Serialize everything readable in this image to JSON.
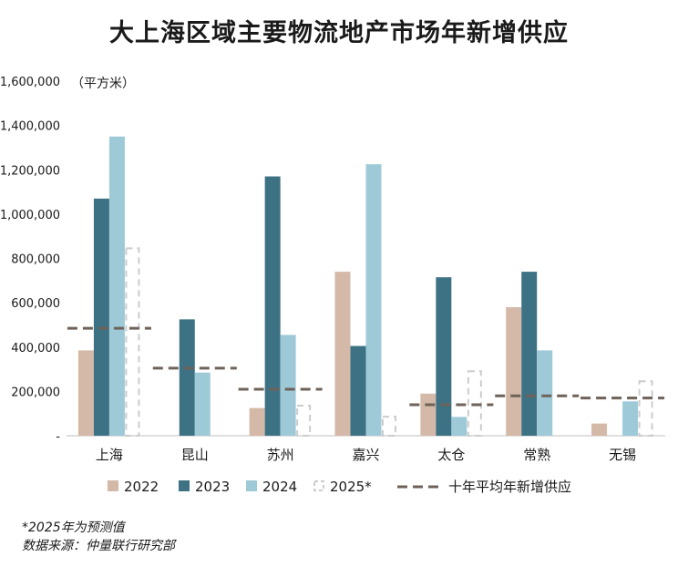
{
  "title": "大上海区域主要物流地产市场年新增供应",
  "unit_label": "（平方米）",
  "footnotes": [
    "*2025年为预测值",
    "数据来源：仲量联行研究部"
  ],
  "colors": {
    "2022": "#d4b9a8",
    "2023": "#3d7285",
    "2024": "#9ecad8",
    "2025*": "#cccccc",
    "avg": "#6e6259"
  },
  "chart_data": {
    "type": "bar",
    "title": "大上海区域主要物流地产市场年新增供应",
    "ylabel": "（平方米）",
    "ylim": [
      0,
      1600000
    ],
    "yticks": [
      0,
      200000,
      400000,
      600000,
      800000,
      1000000,
      1200000,
      1400000,
      1600000
    ],
    "ytick_labels": [
      "-",
      "200,000",
      "400,000",
      "600,000",
      "800,000",
      "1,000,000",
      "1,200,000",
      "1,400,000",
      "1,600,000"
    ],
    "categories": [
      "上海",
      "昆山",
      "苏州",
      "嘉兴",
      "太仓",
      "常熟",
      "无锡"
    ],
    "series": [
      {
        "name": "2022",
        "style": "solid",
        "values": [
          385000,
          0,
          125000,
          740000,
          190000,
          580000,
          55000
        ]
      },
      {
        "name": "2023",
        "style": "solid",
        "values": [
          1070000,
          525000,
          1170000,
          405000,
          715000,
          740000,
          0
        ]
      },
      {
        "name": "2024",
        "style": "solid",
        "values": [
          1350000,
          285000,
          455000,
          1225000,
          85000,
          385000,
          155000
        ]
      },
      {
        "name": "2025*",
        "style": "dashed",
        "values": [
          850000,
          0,
          140000,
          90000,
          295000,
          0,
          250000
        ]
      }
    ],
    "average": {
      "name": "十年平均年新增供应",
      "values": [
        485000,
        305000,
        210000,
        0,
        140000,
        180000,
        170000
      ]
    },
    "grid": false,
    "legend_position": "bottom"
  }
}
